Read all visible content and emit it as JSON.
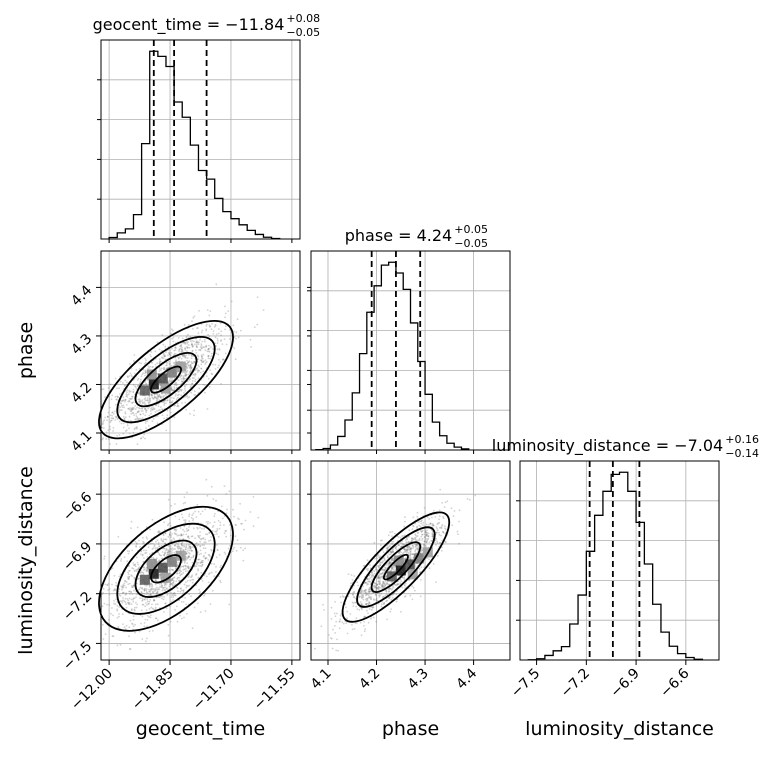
{
  "colors": {
    "hist": "#000000",
    "grid": "#b0b0b0",
    "scatter": "#7f7f7f",
    "quantile": "#000000"
  },
  "chart_data": {
    "type": "corner",
    "parameters": [
      {
        "name": "geocent_time",
        "title": {
          "text": "geocent_time = −11.84",
          "sup": "+0.08",
          "sub": "−0.05"
        },
        "median": -11.84,
        "q_low": -11.89,
        "q_high": -11.76,
        "range": [
          -12.02,
          -11.53
        ],
        "ticks": [
          -12.0,
          -11.85,
          -11.7,
          -11.55
        ],
        "tick_labels": [
          "−12.00",
          "−11.85",
          "−11.70",
          "−11.55"
        ],
        "hist": {
          "edges": [
            -12.0,
            -11.98,
            -11.96,
            -11.94,
            -11.92,
            -11.9,
            -11.88,
            -11.86,
            -11.84,
            -11.82,
            -11.8,
            -11.78,
            -11.76,
            -11.74,
            -11.72,
            -11.7,
            -11.68,
            -11.66,
            -11.64,
            -11.62,
            -11.6,
            -11.58
          ],
          "counts": [
            30,
            120,
            200,
            480,
            1880,
            3700,
            3600,
            3400,
            2700,
            2400,
            1850,
            1350,
            1180,
            800,
            540,
            400,
            280,
            170,
            90,
            35,
            10
          ]
        }
      },
      {
        "name": "phase",
        "title": {
          "text": "phase = 4.24",
          "sup": "+0.05",
          "sub": "−0.05"
        },
        "median": 4.24,
        "q_low": 4.19,
        "q_high": 4.29,
        "range": [
          4.065,
          4.475
        ],
        "ticks": [
          4.1,
          4.2,
          4.3,
          4.4
        ],
        "tick_labels": [
          "4.1",
          "4.2",
          "4.3",
          "4.4"
        ],
        "hist": {
          "edges": [
            4.075,
            4.09,
            4.105,
            4.12,
            4.135,
            4.15,
            4.165,
            4.18,
            4.195,
            4.21,
            4.225,
            4.24,
            4.255,
            4.27,
            4.285,
            4.3,
            4.315,
            4.33,
            4.345,
            4.36,
            4.375,
            4.39
          ],
          "counts": [
            5,
            20,
            70,
            190,
            420,
            800,
            1350,
            1930,
            2300,
            2590,
            2630,
            2480,
            2250,
            1780,
            1240,
            780,
            390,
            200,
            95,
            40,
            15
          ]
        }
      },
      {
        "name": "luminosity_distance",
        "title": {
          "text": "luminosity_distance = −7.04",
          "sup": "+0.16",
          "sub": "−0.14"
        },
        "median": -7.04,
        "q_low": -7.18,
        "q_high": -6.88,
        "range": [
          -7.6,
          -6.4
        ],
        "ticks": [
          -7.5,
          -7.2,
          -6.9,
          -6.6
        ],
        "tick_labels": [
          "−7.5",
          "−7.2",
          "−6.9",
          "−6.6"
        ],
        "hist": {
          "edges": [
            -7.55,
            -7.5,
            -7.45,
            -7.4,
            -7.35,
            -7.3,
            -7.25,
            -7.2,
            -7.15,
            -7.1,
            -7.05,
            -7.0,
            -6.95,
            -6.9,
            -6.85,
            -6.8,
            -6.75,
            -6.7,
            -6.65,
            -6.6,
            -6.55,
            -6.5
          ],
          "counts": [
            4,
            18,
            65,
            130,
            190,
            510,
            920,
            1540,
            2050,
            2390,
            2630,
            2660,
            2390,
            1950,
            1360,
            790,
            395,
            195,
            90,
            35,
            10
          ]
        }
      }
    ],
    "pairs": [
      {
        "x": "geocent_time",
        "y": "phase",
        "y_ticks": [
          4.1,
          4.2,
          4.3,
          4.4
        ],
        "y_tick_labels": [
          "4.1",
          "4.2",
          "4.3",
          "4.4"
        ],
        "center": [
          -11.86,
          4.21
        ],
        "slope": 0.55,
        "sx": 0.075,
        "sy": 0.055,
        "rho": 0.72,
        "peak": [
          -11.89,
          4.2
        ]
      },
      {
        "x": "geocent_time",
        "y": "luminosity_distance",
        "y_ticks": [
          -7.5,
          -7.2,
          -6.9,
          -6.6
        ],
        "y_tick_labels": [
          "−7.5",
          "−7.2",
          "−6.9",
          "−6.6"
        ],
        "center": [
          -11.86,
          -7.05
        ],
        "sx": 0.075,
        "sy": 0.17,
        "rho": 0.55,
        "peak": [
          -11.89,
          -7.08
        ]
      },
      {
        "x": "phase",
        "y": "luminosity_distance",
        "center": [
          4.24,
          -7.04
        ],
        "sx": 0.05,
        "sy": 0.15,
        "rho": 0.82,
        "peak": [
          4.25,
          -7.06
        ]
      }
    ],
    "axis_labels": {
      "x": [
        "geocent_time",
        "phase",
        "luminosity_distance"
      ],
      "y": [
        "",
        "phase",
        "luminosity_distance"
      ]
    }
  }
}
